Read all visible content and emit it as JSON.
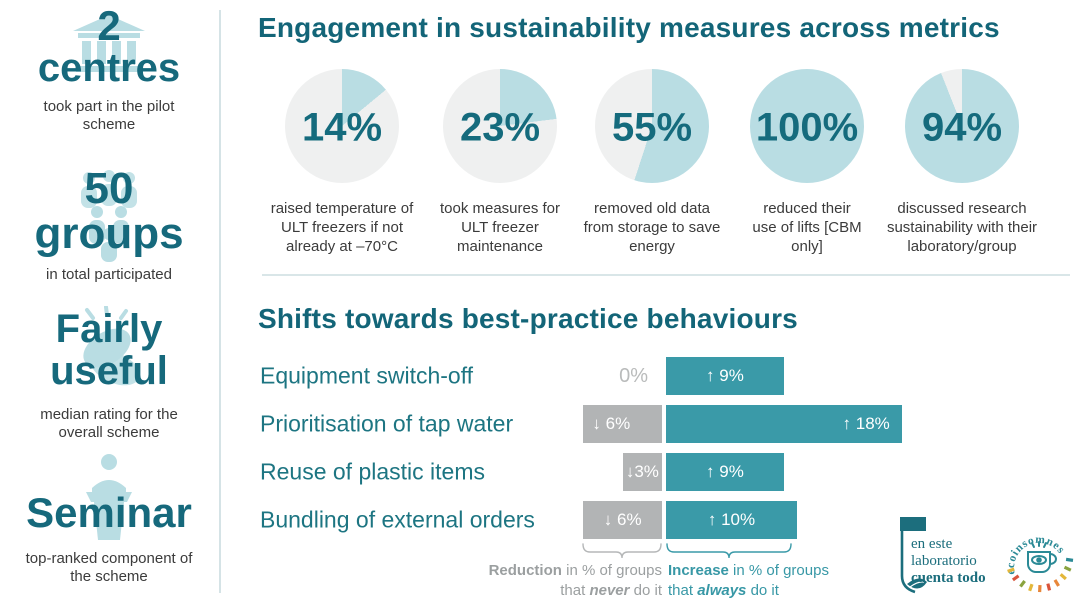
{
  "colors": {
    "accent_dark": "#16697c",
    "accent_mid": "#3a9aa8",
    "accent_light": "#b9dde3",
    "pie_rest": "#eff0f0",
    "bar_gray": "#b2b4b5",
    "divider": "#d5e3e6",
    "logo_teal": "#1c6e7d",
    "caption_text": "#3b3b3b",
    "legend_gray": "#9b9fa0"
  },
  "sidebar": {
    "stats": [
      {
        "value": "2",
        "unit": "centres",
        "caption": "took part in the pilot scheme",
        "icon": "building-icon"
      },
      {
        "value": "50",
        "unit": "groups",
        "caption": "in total participated",
        "icon": "people-group-icon"
      },
      {
        "value": "Fairly",
        "unit": "useful",
        "caption": "median rating for the overall scheme",
        "icon": "clapping-hands-icon"
      },
      {
        "value": "Seminar",
        "caption": "top-ranked component of the scheme",
        "icon": "lectern-speaker-icon"
      }
    ]
  },
  "engagement": {
    "title": "Engagement in sustainability measures across metrics",
    "pies": [
      {
        "value": 14,
        "label": "14%",
        "caption": "raised temperature of ULT freezers if not already at –70°C"
      },
      {
        "value": 23,
        "label": "23%",
        "caption": "took measures for ULT freezer maintenance"
      },
      {
        "value": 55,
        "label": "55%",
        "caption": "removed old data from storage to save energy"
      },
      {
        "value": 100,
        "label": "100%",
        "caption": "reduced their use of lifts [CBM only]"
      },
      {
        "value": 94,
        "label": "94%",
        "caption": "discussed research sustainability with their laboratory/group"
      }
    ]
  },
  "shifts": {
    "title": "Shifts towards best-practice behaviours",
    "rows": [
      {
        "label": "Equipment switch-off",
        "reduction": 0,
        "reduction_label": "0%",
        "increase": 9,
        "increase_label": "↑ 9%"
      },
      {
        "label": "Prioritisation of tap water",
        "reduction": 6,
        "reduction_label": "↓ 6%",
        "increase": 18,
        "increase_label": "↑ 18%"
      },
      {
        "label": "Reuse of plastic items",
        "reduction": 3,
        "reduction_label": "↓3%",
        "increase": 9,
        "increase_label": "↑ 9%"
      },
      {
        "label": "Bundling of external orders",
        "reduction": 6,
        "reduction_label": "↓ 6%",
        "increase": 10,
        "increase_label": "↑ 10%"
      }
    ],
    "legend": {
      "reduction": {
        "lead": "Reduction",
        "rest": " in % of groups",
        "pre": "that ",
        "word": "never",
        "post": " do it"
      },
      "increase": {
        "lead": "Increase",
        "rest": " in % of groups",
        "pre": "that ",
        "word": "always",
        "post": " do it"
      }
    }
  },
  "logos": {
    "lab": {
      "line1": "en este",
      "line2": "laboratorio",
      "line3": "cuenta todo"
    },
    "eco": {
      "name": "ecoinsomnes"
    }
  },
  "chart_data": [
    {
      "type": "pie",
      "title": "Engagement in sustainability measures across metrics",
      "values": [
        14,
        23,
        55,
        100,
        94
      ],
      "labels": [
        "raised temperature of ULT freezers if not already at –70°C",
        "took measures for ULT freezer maintenance",
        "removed old data from storage to save energy",
        "reduced their use of lifts [CBM only]",
        "discussed research sustainability with their laboratory/group"
      ],
      "unit": "%",
      "style": "five separate donuts, filled wedge starts at 12 o'clock clockwise"
    },
    {
      "type": "bar",
      "title": "Shifts towards best-practice behaviours",
      "orientation": "horizontal-diverging",
      "categories": [
        "Equipment switch-off",
        "Prioritisation of tap water",
        "Reuse of plastic items",
        "Bundling of external orders"
      ],
      "series": [
        {
          "name": "Reduction in % of groups that never do it",
          "values": [
            0,
            -6,
            -3,
            -6
          ],
          "color": "#b2b4b5"
        },
        {
          "name": "Increase in % of groups that always do it",
          "values": [
            9,
            18,
            9,
            10
          ],
          "color": "#3a9aa8"
        }
      ],
      "xlim": [
        -8,
        20
      ],
      "grid": false,
      "legend_position": "bottom"
    }
  ]
}
